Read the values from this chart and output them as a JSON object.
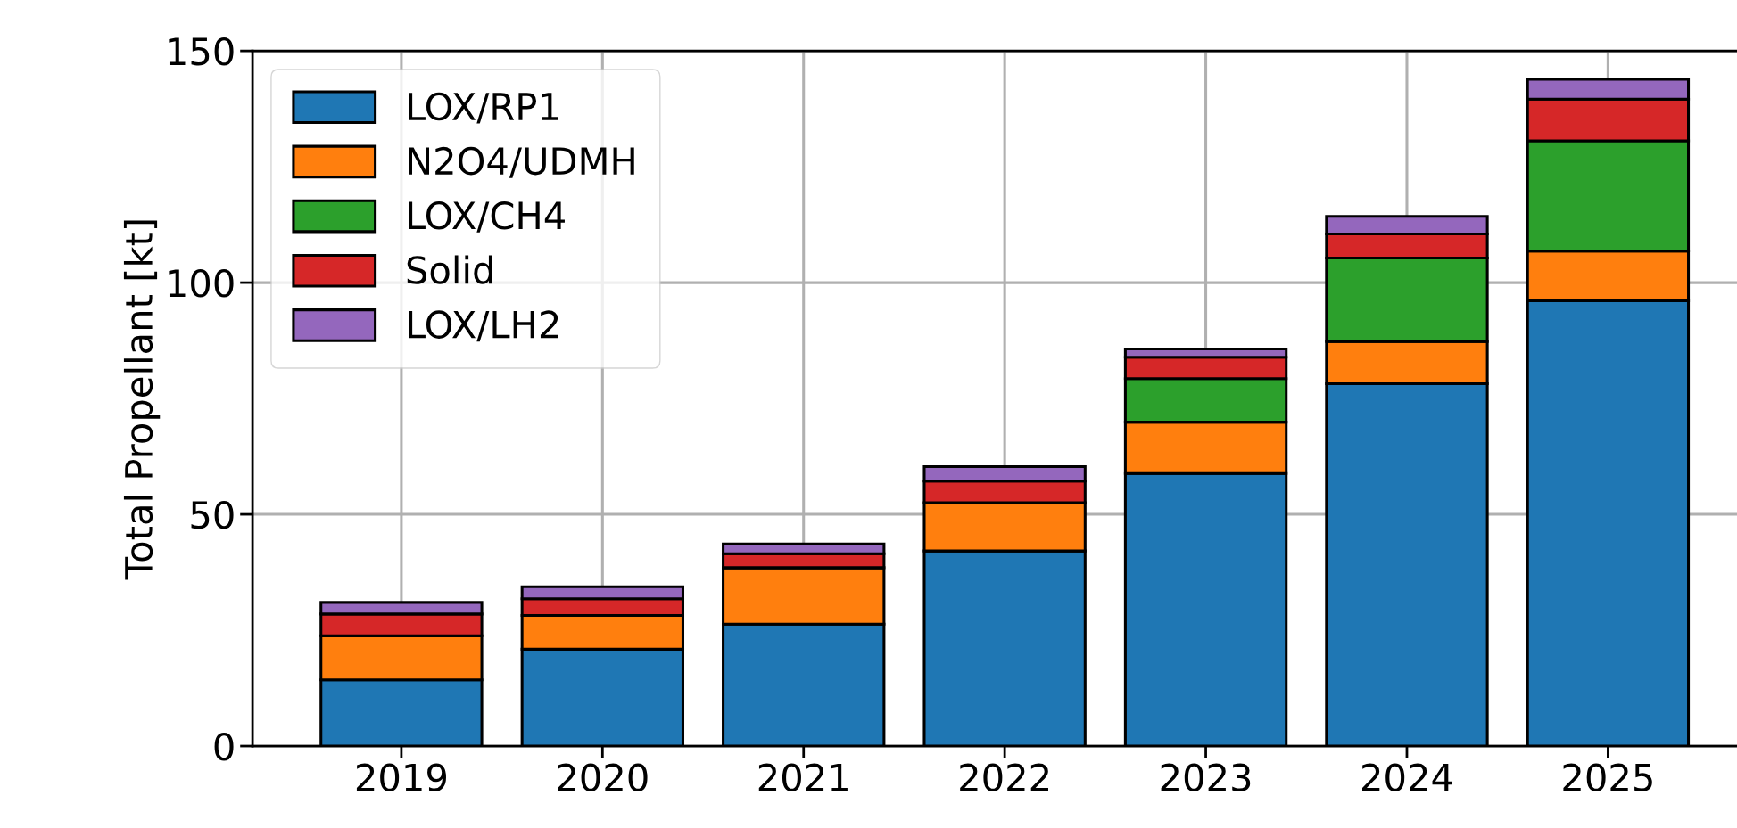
{
  "chart_data": {
    "type": "bar",
    "stacked": true,
    "ylabel": "Total Propellant [kt]",
    "categories": [
      "2019",
      "2020",
      "2021",
      "2022",
      "2023",
      "2024",
      "2025"
    ],
    "series": [
      {
        "name": "LOX/RP1",
        "color": "#1f77b4",
        "values": [
          14.3,
          20.9,
          26.3,
          42.1,
          58.8,
          78.2,
          96.1
        ]
      },
      {
        "name": "N2O4/UDMH",
        "color": "#ff7f0e",
        "values": [
          9.5,
          7.3,
          12.2,
          10.4,
          11.1,
          9.1,
          10.7
        ]
      },
      {
        "name": "LOX/CH4",
        "color": "#2ca02c",
        "values": [
          0,
          0,
          0,
          0,
          9.4,
          18.0,
          23.8
        ]
      },
      {
        "name": "Solid",
        "color": "#d62728",
        "values": [
          4.7,
          3.6,
          3.0,
          4.7,
          4.6,
          5.2,
          9.0
        ]
      },
      {
        "name": "LOX/LH2",
        "color": "#9467bd",
        "values": [
          2.5,
          2.6,
          2.1,
          3.1,
          1.8,
          3.8,
          4.3
        ]
      }
    ],
    "ylim": [
      0,
      150
    ],
    "yticks": [
      0,
      50,
      100,
      150
    ],
    "grid": true,
    "legend": "top left"
  }
}
